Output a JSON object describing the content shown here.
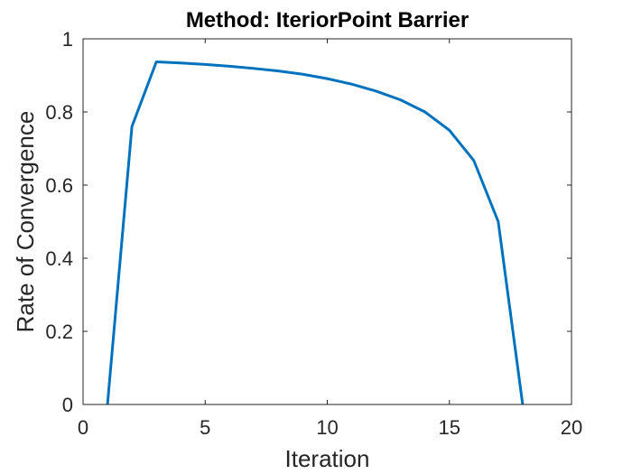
{
  "chart_data": {
    "type": "line",
    "title": "Method: IteriorPoint Barrier",
    "xlabel": "Iteration",
    "ylabel": "Rate of Convergence",
    "xlim": [
      0,
      20
    ],
    "ylim": [
      0,
      1
    ],
    "xticks": [
      0,
      5,
      10,
      15,
      20
    ],
    "yticks": [
      0,
      0.2,
      0.4,
      0.6,
      0.8,
      1
    ],
    "xtick_labels": [
      "0",
      "5",
      "10",
      "15",
      "20"
    ],
    "ytick_labels": [
      "0",
      "0.2",
      "0.4",
      "0.6",
      "0.8",
      "1"
    ],
    "grid": false,
    "box": true,
    "series": [
      {
        "color": "#0072BD",
        "x": [
          1,
          2,
          3,
          4,
          5,
          6,
          7,
          8,
          9,
          10,
          11,
          12,
          13,
          14,
          15,
          16,
          17,
          18
        ],
        "y": [
          0,
          0.76,
          0.937,
          0.934,
          0.93,
          0.925,
          0.919,
          0.912,
          0.903,
          0.891,
          0.876,
          0.857,
          0.833,
          0.8,
          0.75,
          0.667,
          0.5,
          0
        ]
      }
    ]
  }
}
